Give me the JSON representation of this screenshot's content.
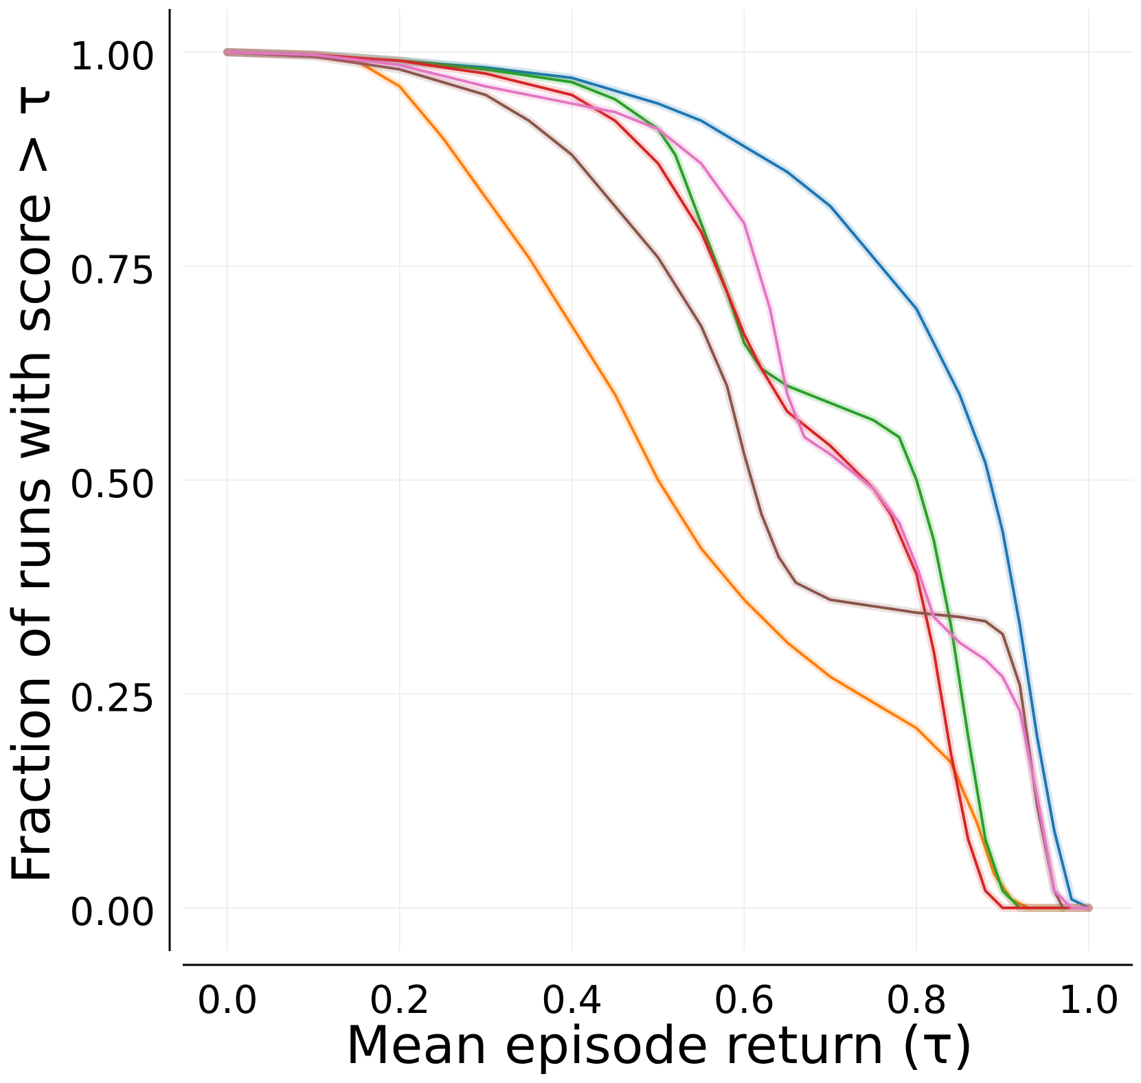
{
  "chart_data": {
    "type": "line",
    "xlabel": "Mean episode return (τ)",
    "ylabel": "Fraction of runs with score > τ",
    "xlim": [
      -0.05,
      1.05
    ],
    "ylim": [
      -0.05,
      1.05
    ],
    "xticks": [
      "0.0",
      "0.2",
      "0.4",
      "0.6",
      "0.8",
      "1.0"
    ],
    "yticks": [
      "0.00",
      "0.25",
      "0.50",
      "0.75",
      "1.00"
    ],
    "grid": true,
    "legend": "none",
    "series": [
      {
        "color": "#1f77b4",
        "x": [
          0,
          0.1,
          0.2,
          0.3,
          0.4,
          0.45,
          0.5,
          0.55,
          0.6,
          0.65,
          0.7,
          0.75,
          0.8,
          0.85,
          0.88,
          0.9,
          0.92,
          0.94,
          0.96,
          0.98,
          1.0
        ],
        "y": [
          1.0,
          0.997,
          0.99,
          0.982,
          0.97,
          0.955,
          0.94,
          0.92,
          0.89,
          0.86,
          0.82,
          0.76,
          0.7,
          0.6,
          0.52,
          0.44,
          0.33,
          0.2,
          0.09,
          0.01,
          0.0
        ]
      },
      {
        "color": "#ff7f0e",
        "x": [
          0,
          0.1,
          0.15,
          0.2,
          0.25,
          0.3,
          0.35,
          0.4,
          0.45,
          0.5,
          0.55,
          0.6,
          0.65,
          0.7,
          0.75,
          0.8,
          0.84,
          0.87,
          0.89,
          0.91,
          0.93,
          1.0
        ],
        "y": [
          1.0,
          0.997,
          0.99,
          0.96,
          0.9,
          0.83,
          0.76,
          0.68,
          0.6,
          0.5,
          0.42,
          0.36,
          0.31,
          0.27,
          0.24,
          0.21,
          0.17,
          0.1,
          0.04,
          0.01,
          0.0,
          0.0
        ]
      },
      {
        "color": "#2ca02c",
        "x": [
          0,
          0.1,
          0.2,
          0.3,
          0.4,
          0.45,
          0.5,
          0.52,
          0.55,
          0.58,
          0.6,
          0.62,
          0.65,
          0.7,
          0.75,
          0.78,
          0.8,
          0.82,
          0.84,
          0.86,
          0.88,
          0.9,
          0.92,
          1.0
        ],
        "y": [
          1.0,
          0.997,
          0.99,
          0.98,
          0.965,
          0.945,
          0.91,
          0.88,
          0.8,
          0.72,
          0.66,
          0.63,
          0.61,
          0.59,
          0.57,
          0.55,
          0.5,
          0.43,
          0.33,
          0.2,
          0.08,
          0.02,
          0.0,
          0.0
        ]
      },
      {
        "color": "#d62728",
        "x": [
          0,
          0.1,
          0.2,
          0.3,
          0.4,
          0.45,
          0.5,
          0.55,
          0.58,
          0.6,
          0.62,
          0.65,
          0.7,
          0.75,
          0.77,
          0.8,
          0.82,
          0.84,
          0.86,
          0.88,
          0.9,
          1.0
        ],
        "y": [
          1.0,
          0.997,
          0.99,
          0.975,
          0.95,
          0.92,
          0.87,
          0.79,
          0.72,
          0.67,
          0.63,
          0.58,
          0.54,
          0.49,
          0.46,
          0.39,
          0.3,
          0.18,
          0.08,
          0.02,
          0.0,
          0.0
        ]
      },
      {
        "color": "#8c564b",
        "x": [
          0,
          0.1,
          0.2,
          0.3,
          0.35,
          0.4,
          0.45,
          0.5,
          0.55,
          0.58,
          0.6,
          0.62,
          0.64,
          0.66,
          0.68,
          0.7,
          0.8,
          0.85,
          0.88,
          0.9,
          0.92,
          0.94,
          0.96,
          0.97
        ],
        "y": [
          1.0,
          0.995,
          0.98,
          0.95,
          0.92,
          0.88,
          0.82,
          0.76,
          0.68,
          0.61,
          0.53,
          0.46,
          0.41,
          0.38,
          0.37,
          0.36,
          0.345,
          0.34,
          0.335,
          0.32,
          0.26,
          0.12,
          0.02,
          0.0
        ]
      },
      {
        "color": "#e377c2",
        "x": [
          0,
          0.1,
          0.2,
          0.3,
          0.35,
          0.4,
          0.45,
          0.5,
          0.55,
          0.6,
          0.63,
          0.65,
          0.67,
          0.7,
          0.75,
          0.78,
          0.8,
          0.82,
          0.85,
          0.88,
          0.9,
          0.92,
          0.94,
          0.96,
          0.98,
          1.0
        ],
        "y": [
          1.0,
          0.997,
          0.985,
          0.96,
          0.95,
          0.94,
          0.93,
          0.91,
          0.87,
          0.8,
          0.7,
          0.6,
          0.55,
          0.53,
          0.49,
          0.45,
          0.4,
          0.34,
          0.31,
          0.29,
          0.27,
          0.23,
          0.13,
          0.02,
          0.0,
          0.0
        ]
      }
    ]
  }
}
